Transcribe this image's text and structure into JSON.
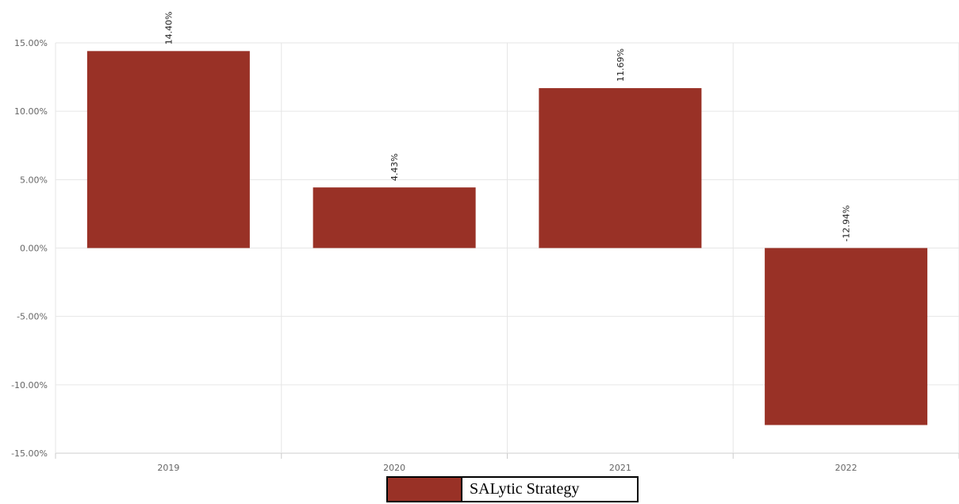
{
  "colors": {
    "bar": "#993126",
    "grid": "#e6e6e6",
    "axis": "#cccccc"
  },
  "chart_data": {
    "type": "bar",
    "categories": [
      "2019",
      "2020",
      "2021",
      "2022"
    ],
    "series": [
      {
        "name": "SALytic Strategy",
        "values": [
          14.4,
          4.43,
          11.69,
          -12.94
        ]
      }
    ],
    "data_labels": [
      "14.40%",
      "4.43%",
      "11.69%",
      "-12.94%"
    ],
    "y_ticks": [
      15,
      10,
      5,
      0,
      -5,
      -10,
      -15
    ],
    "y_tick_labels": [
      "15.00%",
      "10.00%",
      "5.00%",
      "0.00%",
      "-5.00%",
      "-10.00%",
      "-15.00%"
    ],
    "ylim": [
      -15,
      15
    ],
    "grid": true,
    "legend_position": "bottom-center"
  }
}
